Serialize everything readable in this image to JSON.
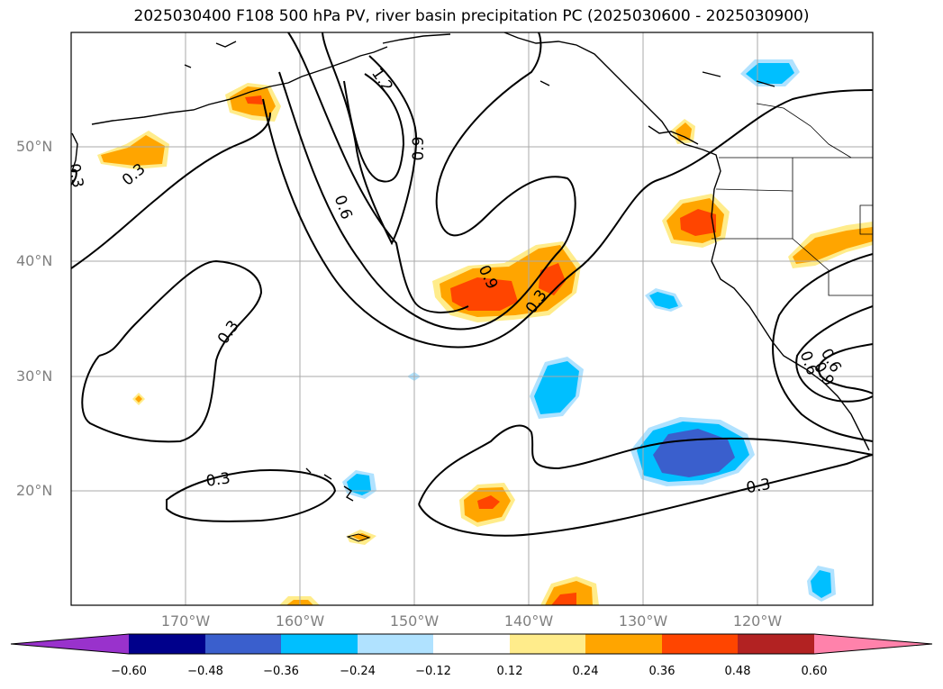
{
  "title": "2025030400 F108 500 hPa PV, river basin precipitation PC (2025030600 - 2025030900)",
  "map": {
    "lat_labels": [
      "50°N",
      "40°N",
      "30°N",
      "20°N"
    ],
    "lon_labels": [
      "170°W",
      "160°W",
      "150°W",
      "140°W",
      "130°W",
      "120°W"
    ],
    "contour_labels": [
      "0.3",
      "0.6",
      "0.9",
      "1.2",
      "0.3",
      "0.3",
      "0.3",
      "0.9",
      "0.3",
      "0.6",
      "0.9",
      "0.3",
      "0.6"
    ]
  },
  "colorbar": {
    "ticks": [
      "−0.60",
      "−0.48",
      "−0.36",
      "−0.24",
      "−0.12",
      "0.12",
      "0.24",
      "0.36",
      "0.48",
      "0.60"
    ],
    "colors": [
      "#9932cc",
      "#00008b",
      "#3a5fcd",
      "#00bfff",
      "#b0e2ff",
      "#ffffff",
      "#ffec8b",
      "#ffa500",
      "#ff4500",
      "#b22222",
      "#ff82ab"
    ]
  }
}
